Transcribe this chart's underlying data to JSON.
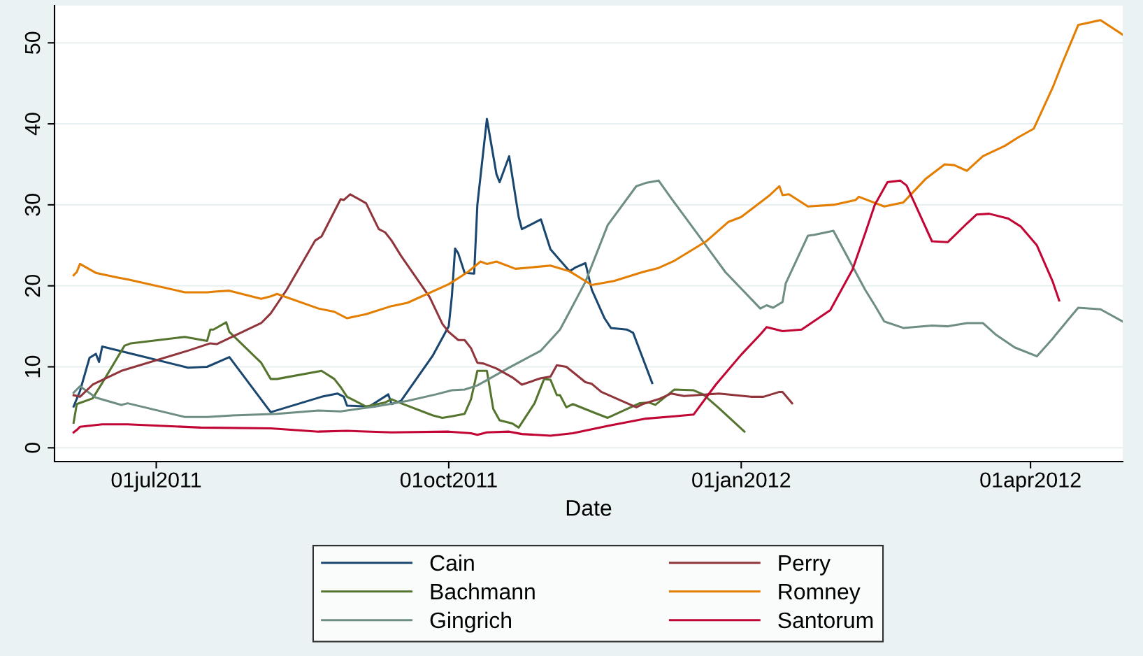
{
  "chart_data": {
    "type": "line",
    "xlabel": "Date",
    "legend": "bottom",
    "grid": "y",
    "line_style": "solid",
    "marker": "none",
    "xlim": [
      "2011-05-30",
      "2012-04-30"
    ],
    "ylim": [
      -1.7,
      54.6
    ],
    "yticks": [
      0,
      10,
      20,
      30,
      40,
      50
    ],
    "xticks": [
      {
        "value": "2011-07-01",
        "label": "01jul2011"
      },
      {
        "value": "2011-10-01",
        "label": "01oct2011"
      },
      {
        "value": "2012-01-01",
        "label": "01jan2012"
      },
      {
        "value": "2012-04-01",
        "label": "01apr2012"
      }
    ],
    "series": [
      {
        "name": "Cain",
        "color": "#1a476f",
        "x": [
          "2011-06-05",
          "2011-06-07",
          "2011-06-10",
          "2011-06-12",
          "2011-06-13",
          "2011-06-14",
          "2011-07-11",
          "2011-07-17",
          "2011-07-24",
          "2011-08-06",
          "2011-08-22",
          "2011-08-27",
          "2011-08-29",
          "2011-08-30",
          "2011-09-06",
          "2011-09-12",
          "2011-09-13",
          "2011-09-16",
          "2011-09-26",
          "2011-10-01",
          "2011-10-02",
          "2011-10-03",
          "2011-10-04",
          "2011-10-06",
          "2011-10-09",
          "2011-10-10",
          "2011-10-13",
          "2011-10-16",
          "2011-10-17",
          "2011-10-20",
          "2011-10-23",
          "2011-10-24",
          "2011-10-30",
          "2011-11-02",
          "2011-11-08",
          "2011-11-10",
          "2011-11-13",
          "2011-11-15",
          "2011-11-19",
          "2011-11-21",
          "2011-11-26",
          "2011-11-28",
          "2011-12-04"
        ],
        "values": [
          5.1,
          7.0,
          11.1,
          11.6,
          10.6,
          12.5,
          9.9,
          10.0,
          11.2,
          4.4,
          6.3,
          6.7,
          6.3,
          5.2,
          5.1,
          6.6,
          5.4,
          5.8,
          11.4,
          15.0,
          18.8,
          24.6,
          24.0,
          21.6,
          21.5,
          30.0,
          40.6,
          33.8,
          32.8,
          36.0,
          28.5,
          27.0,
          28.2,
          24.5,
          21.8,
          22.3,
          22.8,
          19.5,
          16.0,
          14.8,
          14.6,
          14.2,
          8.0
        ]
      },
      {
        "name": "Bachmann",
        "color": "#55752f",
        "x": [
          "2011-06-05",
          "2011-06-06",
          "2011-06-11",
          "2011-06-14",
          "2011-06-21",
          "2011-06-23",
          "2011-07-10",
          "2011-07-17",
          "2011-07-18",
          "2011-07-19",
          "2011-07-23",
          "2011-07-24",
          "2011-08-03",
          "2011-08-06",
          "2011-08-08",
          "2011-08-22",
          "2011-08-26",
          "2011-08-28",
          "2011-08-30",
          "2011-09-05",
          "2011-09-11",
          "2011-09-13",
          "2011-09-16",
          "2011-09-26",
          "2011-09-29",
          "2011-10-02",
          "2011-10-06",
          "2011-10-08",
          "2011-10-10",
          "2011-10-13",
          "2011-10-15",
          "2011-10-17",
          "2011-10-21",
          "2011-10-23",
          "2011-10-28",
          "2011-10-31",
          "2011-11-02",
          "2011-11-04",
          "2011-11-05",
          "2011-11-07",
          "2011-11-09",
          "2011-11-16",
          "2011-11-20",
          "2011-11-30",
          "2011-12-03",
          "2011-12-05",
          "2011-12-11",
          "2011-12-17",
          "2011-12-20",
          "2011-12-25",
          "2012-01-02"
        ],
        "values": [
          3.1,
          5.4,
          6.1,
          8.0,
          12.6,
          12.9,
          13.7,
          13.2,
          14.6,
          14.6,
          15.5,
          14.3,
          10.5,
          8.5,
          8.5,
          9.5,
          8.5,
          7.5,
          6.3,
          5.1,
          5.6,
          6.0,
          5.5,
          4.0,
          3.7,
          3.9,
          4.2,
          6.0,
          9.5,
          9.5,
          4.8,
          3.4,
          3.0,
          2.5,
          5.5,
          8.5,
          8.4,
          6.5,
          6.5,
          5.0,
          5.4,
          4.3,
          3.7,
          5.5,
          5.6,
          5.3,
          7.2,
          7.1,
          6.6,
          4.9,
          2.0
        ]
      },
      {
        "name": "Gingrich",
        "color": "#6e8e84",
        "x": [
          "2011-06-05",
          "2011-06-07",
          "2011-06-12",
          "2011-06-20",
          "2011-06-22",
          "2011-07-10",
          "2011-07-17",
          "2011-07-25",
          "2011-08-08",
          "2011-08-21",
          "2011-08-28",
          "2011-09-08",
          "2011-09-18",
          "2011-09-27",
          "2011-10-02",
          "2011-10-06",
          "2011-10-10",
          "2011-10-20",
          "2011-10-30",
          "2011-11-05",
          "2011-11-08",
          "2011-11-13",
          "2011-11-20",
          "2011-11-29",
          "2011-12-02",
          "2011-12-06",
          "2011-12-10",
          "2011-12-19",
          "2011-12-27",
          "2012-01-07",
          "2012-01-09",
          "2012-01-11",
          "2012-01-14",
          "2012-01-15",
          "2012-01-22",
          "2012-01-24",
          "2012-01-30",
          "2012-02-09",
          "2012-02-12",
          "2012-02-15",
          "2012-02-21",
          "2012-03-01",
          "2012-03-06",
          "2012-03-12",
          "2012-03-17",
          "2012-03-21",
          "2012-03-27",
          "2012-04-03",
          "2012-04-08",
          "2012-04-09",
          "2012-04-16",
          "2012-04-23",
          "2012-04-30"
        ],
        "values": [
          6.8,
          7.6,
          6.2,
          5.3,
          5.5,
          3.8,
          3.8,
          4.0,
          4.2,
          4.6,
          4.5,
          5.1,
          5.8,
          6.6,
          7.1,
          7.2,
          7.7,
          9.9,
          12.0,
          14.6,
          16.8,
          20.5,
          27.5,
          32.3,
          32.7,
          33.0,
          30.8,
          26.0,
          21.7,
          17.2,
          17.6,
          17.3,
          18.0,
          20.3,
          26.2,
          26.3,
          26.8,
          19.5,
          17.6,
          15.6,
          14.8,
          15.1,
          15.0,
          15.4,
          15.4,
          14.0,
          12.4,
          11.3,
          13.5,
          14.0,
          17.3,
          17.1,
          15.6
        ]
      },
      {
        "name": "Perry",
        "color": "#90353b",
        "x": [
          "2011-06-05",
          "2011-06-07",
          "2011-06-11",
          "2011-06-20",
          "2011-07-11",
          "2011-07-18",
          "2011-07-20",
          "2011-08-03",
          "2011-08-06",
          "2011-08-11",
          "2011-08-20",
          "2011-08-22",
          "2011-08-28",
          "2011-08-29",
          "2011-08-31",
          "2011-09-05",
          "2011-09-09",
          "2011-09-11",
          "2011-09-13",
          "2011-09-16",
          "2011-09-25",
          "2011-09-29",
          "2011-10-01",
          "2011-10-04",
          "2011-10-06",
          "2011-10-08",
          "2011-10-10",
          "2011-10-12",
          "2011-10-16",
          "2011-10-21",
          "2011-10-24",
          "2011-10-30",
          "2011-11-02",
          "2011-11-04",
          "2011-11-07",
          "2011-11-13",
          "2011-11-15",
          "2011-11-18",
          "2011-11-29",
          "2011-12-01",
          "2011-12-06",
          "2011-12-10",
          "2011-12-14",
          "2011-12-18",
          "2011-12-25",
          "2012-01-04",
          "2012-01-08",
          "2012-01-13",
          "2012-01-14",
          "2012-01-17"
        ],
        "values": [
          6.5,
          6.3,
          7.8,
          9.5,
          12.0,
          12.9,
          12.8,
          15.4,
          16.6,
          19.5,
          25.6,
          26.1,
          30.7,
          30.6,
          31.3,
          30.2,
          27.0,
          26.6,
          25.6,
          23.7,
          18.6,
          15.3,
          14.3,
          13.3,
          13.3,
          12.3,
          10.5,
          10.4,
          9.8,
          8.7,
          7.8,
          8.6,
          8.8,
          10.2,
          10.0,
          8.1,
          7.9,
          6.9,
          5.0,
          5.4,
          6.0,
          6.7,
          6.4,
          6.5,
          6.7,
          6.3,
          6.3,
          6.9,
          6.9,
          5.5
        ]
      },
      {
        "name": "Romney",
        "color": "#e37e00",
        "x": [
          "2011-06-05",
          "2011-06-06",
          "2011-06-07",
          "2011-06-12",
          "2011-06-19",
          "2011-06-22",
          "2011-07-10",
          "2011-07-17",
          "2011-07-20",
          "2011-07-24",
          "2011-08-03",
          "2011-08-06",
          "2011-08-08",
          "2011-08-21",
          "2011-08-26",
          "2011-08-30",
          "2011-09-05",
          "2011-09-13",
          "2011-09-18",
          "2011-10-01",
          "2011-10-07",
          "2011-10-11",
          "2011-10-13",
          "2011-10-16",
          "2011-10-22",
          "2011-11-02",
          "2011-11-08",
          "2011-11-15",
          "2011-11-22",
          "2011-12-01",
          "2011-12-06",
          "2011-12-11",
          "2011-12-21",
          "2011-12-28",
          "2012-01-01",
          "2012-01-07",
          "2012-01-10",
          "2012-01-13",
          "2012-01-14",
          "2012-01-16",
          "2012-01-22",
          "2012-01-30",
          "2012-02-06",
          "2012-02-07",
          "2012-02-15",
          "2012-02-21",
          "2012-02-28",
          "2012-03-05",
          "2012-03-08",
          "2012-03-12",
          "2012-03-17",
          "2012-03-24",
          "2012-03-28",
          "2012-04-02",
          "2012-04-08",
          "2012-04-11",
          "2012-04-16",
          "2012-04-23",
          "2012-04-30"
        ],
        "values": [
          21.3,
          21.7,
          22.7,
          21.6,
          21.0,
          20.8,
          19.2,
          19.2,
          19.3,
          19.4,
          18.4,
          18.7,
          19.0,
          17.2,
          16.8,
          16.0,
          16.5,
          17.5,
          17.9,
          20.2,
          21.7,
          23.0,
          22.7,
          23.0,
          22.1,
          22.5,
          21.8,
          20.1,
          20.6,
          21.7,
          22.2,
          23.1,
          25.5,
          27.9,
          28.5,
          30.3,
          31.2,
          32.3,
          31.2,
          31.3,
          29.8,
          30.0,
          30.6,
          31.0,
          29.8,
          30.3,
          33.2,
          35.0,
          34.9,
          34.2,
          36.0,
          37.3,
          38.3,
          39.4,
          44.5,
          47.5,
          52.2,
          52.8,
          51.0
        ]
      },
      {
        "name": "Santorum",
        "color": "#c10534",
        "x": [
          "2011-06-05",
          "2011-06-06",
          "2011-06-07",
          "2011-06-14",
          "2011-06-22",
          "2011-07-15",
          "2011-08-06",
          "2011-08-21",
          "2011-08-30",
          "2011-09-13",
          "2011-10-01",
          "2011-10-08",
          "2011-10-10",
          "2011-10-13",
          "2011-10-20",
          "2011-10-24",
          "2011-11-02",
          "2011-11-09",
          "2011-11-20",
          "2011-12-02",
          "2011-12-11",
          "2011-12-17",
          "2011-12-24",
          "2012-01-01",
          "2012-01-07",
          "2012-01-09",
          "2012-01-14",
          "2012-01-20",
          "2012-01-29",
          "2012-02-05",
          "2012-02-09",
          "2012-02-12",
          "2012-02-16",
          "2012-02-20",
          "2012-02-22",
          "2012-03-01",
          "2012-03-06",
          "2012-03-12",
          "2012-03-15",
          "2012-03-19",
          "2012-03-25",
          "2012-03-29",
          "2012-04-03",
          "2012-04-08",
          "2012-04-10"
        ],
        "values": [
          1.9,
          2.2,
          2.6,
          2.9,
          2.9,
          2.5,
          2.4,
          2.0,
          2.1,
          1.9,
          2.0,
          1.8,
          1.6,
          1.9,
          2.0,
          1.7,
          1.5,
          1.8,
          2.7,
          3.6,
          3.9,
          4.1,
          7.8,
          11.5,
          14.0,
          14.9,
          14.4,
          14.6,
          17.0,
          22.0,
          26.5,
          30.0,
          32.8,
          33.0,
          32.4,
          25.5,
          25.4,
          27.7,
          28.8,
          28.9,
          28.3,
          27.3,
          25.0,
          20.5,
          18.2
        ]
      }
    ]
  }
}
